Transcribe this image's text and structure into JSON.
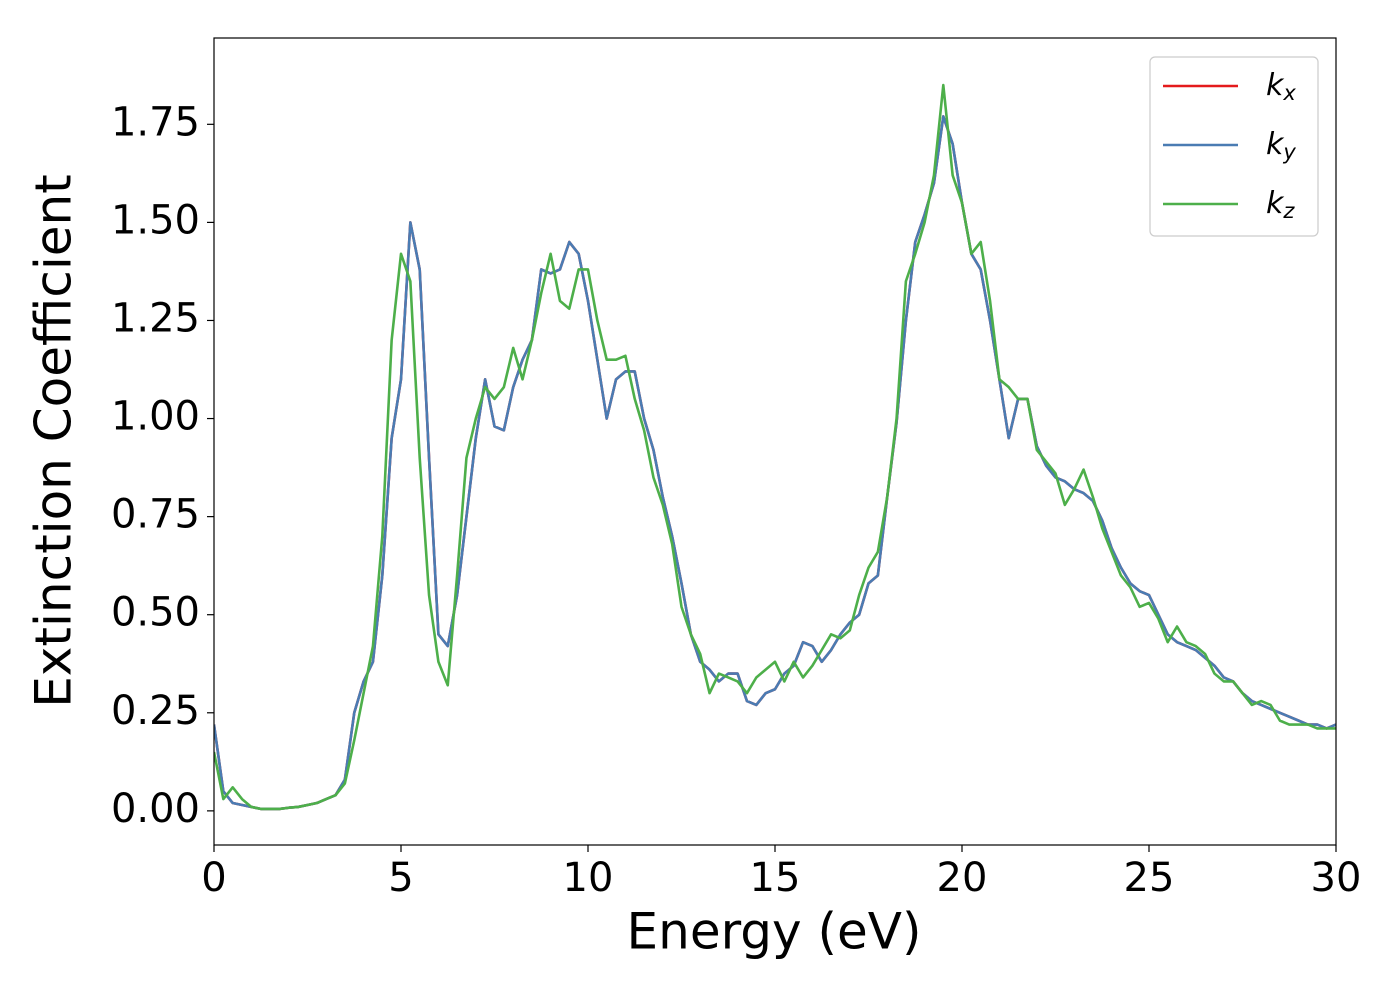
{
  "chart_data": {
    "type": "line",
    "x_label": "Energy (eV)",
    "y_label": "Extinction Coefficient",
    "xlim": [
      0,
      30
    ],
    "ylim": [
      -0.087,
      1.97
    ],
    "xticks": [
      0,
      5,
      10,
      15,
      20,
      25,
      30
    ],
    "yticks": [
      {
        "value": 0,
        "label": "0.00"
      },
      {
        "value": 0.25,
        "label": "0.25"
      },
      {
        "value": 0.5,
        "label": "0.50"
      },
      {
        "value": 0.75,
        "label": "0.75"
      },
      {
        "value": 1,
        "label": "1.00"
      },
      {
        "value": 1.25,
        "label": "1.25"
      },
      {
        "value": 1.5,
        "label": "1.50"
      },
      {
        "value": 1.75,
        "label": "1.75"
      }
    ],
    "grid": false,
    "legend": "upper right",
    "x": [
      0,
      0.25,
      0.5,
      0.75,
      1,
      1.25,
      1.5,
      1.75,
      2,
      2.25,
      2.5,
      2.75,
      3,
      3.25,
      3.5,
      3.75,
      4,
      4.25,
      4.5,
      4.75,
      5,
      5.25,
      5.5,
      5.75,
      6,
      6.25,
      6.5,
      6.75,
      7,
      7.25,
      7.5,
      7.75,
      8,
      8.25,
      8.5,
      8.75,
      9,
      9.25,
      9.5,
      9.75,
      10,
      10.25,
      10.5,
      10.75,
      11,
      11.25,
      11.5,
      11.75,
      12,
      12.25,
      12.5,
      12.75,
      13,
      13.25,
      13.5,
      13.75,
      14,
      14.25,
      14.5,
      14.75,
      15,
      15.25,
      15.5,
      15.75,
      16,
      16.25,
      16.5,
      16.75,
      17,
      17.25,
      17.5,
      17.75,
      18,
      18.25,
      18.5,
      18.75,
      19,
      19.25,
      19.5,
      19.75,
      20,
      20.25,
      20.5,
      20.75,
      21,
      21.25,
      21.5,
      21.75,
      22,
      22.25,
      22.5,
      22.75,
      23,
      23.25,
      23.5,
      23.75,
      24,
      24.25,
      24.5,
      24.75,
      25,
      25.25,
      25.5,
      25.75,
      26,
      26.25,
      26.5,
      26.75,
      27,
      27.25,
      27.5,
      27.75,
      28,
      28.25,
      28.5,
      28.75,
      29,
      29.25,
      29.5,
      29.75,
      30
    ],
    "series": [
      {
        "name": "kx",
        "color": "#e41a1c",
        "values": [
          0.22,
          0.05,
          0.02,
          0.015,
          0.01,
          0.005,
          0.005,
          0.005,
          0.008,
          0.01,
          0.015,
          0.02,
          0.03,
          0.04,
          0.08,
          0.25,
          0.33,
          0.38,
          0.6,
          0.95,
          1.1,
          1.5,
          1.38,
          0.9,
          0.45,
          0.42,
          0.55,
          0.75,
          0.95,
          1.1,
          0.98,
          0.97,
          1.08,
          1.15,
          1.2,
          1.38,
          1.37,
          1.38,
          1.45,
          1.42,
          1.3,
          1.15,
          1.0,
          1.1,
          1.12,
          1.12,
          1.0,
          0.92,
          0.8,
          0.7,
          0.58,
          0.45,
          0.38,
          0.36,
          0.33,
          0.35,
          0.35,
          0.28,
          0.27,
          0.3,
          0.31,
          0.35,
          0.37,
          0.43,
          0.42,
          0.38,
          0.41,
          0.45,
          0.48,
          0.5,
          0.58,
          0.6,
          0.8,
          0.99,
          1.25,
          1.45,
          1.52,
          1.6,
          1.77,
          1.7,
          1.55,
          1.42,
          1.38,
          1.25,
          1.1,
          0.95,
          1.05,
          1.05,
          0.93,
          0.88,
          0.85,
          0.84,
          0.82,
          0.81,
          0.79,
          0.74,
          0.67,
          0.62,
          0.58,
          0.56,
          0.55,
          0.5,
          0.45,
          0.43,
          0.42,
          0.41,
          0.39,
          0.37,
          0.34,
          0.33,
          0.3,
          0.28,
          0.27,
          0.26,
          0.25,
          0.24,
          0.23,
          0.22,
          0.22,
          0.21,
          0.22
        ]
      },
      {
        "name": "ky",
        "color": "#4a7cb3",
        "values": [
          0.22,
          0.05,
          0.02,
          0.015,
          0.01,
          0.005,
          0.005,
          0.005,
          0.008,
          0.01,
          0.015,
          0.02,
          0.03,
          0.04,
          0.08,
          0.25,
          0.33,
          0.38,
          0.6,
          0.95,
          1.1,
          1.5,
          1.38,
          0.9,
          0.45,
          0.42,
          0.55,
          0.75,
          0.95,
          1.1,
          0.98,
          0.97,
          1.08,
          1.15,
          1.2,
          1.38,
          1.37,
          1.38,
          1.45,
          1.42,
          1.3,
          1.15,
          1.0,
          1.1,
          1.12,
          1.12,
          1.0,
          0.92,
          0.8,
          0.7,
          0.58,
          0.45,
          0.38,
          0.36,
          0.33,
          0.35,
          0.35,
          0.28,
          0.27,
          0.3,
          0.31,
          0.35,
          0.37,
          0.43,
          0.42,
          0.38,
          0.41,
          0.45,
          0.48,
          0.5,
          0.58,
          0.6,
          0.8,
          0.99,
          1.25,
          1.45,
          1.52,
          1.6,
          1.77,
          1.7,
          1.55,
          1.42,
          1.38,
          1.25,
          1.1,
          0.95,
          1.05,
          1.05,
          0.93,
          0.88,
          0.85,
          0.84,
          0.82,
          0.81,
          0.79,
          0.74,
          0.67,
          0.62,
          0.58,
          0.56,
          0.55,
          0.5,
          0.45,
          0.43,
          0.42,
          0.41,
          0.39,
          0.37,
          0.34,
          0.33,
          0.3,
          0.28,
          0.27,
          0.26,
          0.25,
          0.24,
          0.23,
          0.22,
          0.22,
          0.21,
          0.22
        ]
      },
      {
        "name": "kz",
        "color": "#4daf4a",
        "values": [
          0.15,
          0.03,
          0.06,
          0.03,
          0.01,
          0.005,
          0.005,
          0.005,
          0.008,
          0.01,
          0.015,
          0.02,
          0.03,
          0.04,
          0.07,
          0.18,
          0.3,
          0.42,
          0.7,
          1.2,
          1.42,
          1.35,
          0.9,
          0.55,
          0.38,
          0.32,
          0.6,
          0.9,
          1.0,
          1.08,
          1.05,
          1.08,
          1.18,
          1.1,
          1.2,
          1.32,
          1.42,
          1.3,
          1.28,
          1.38,
          1.38,
          1.25,
          1.15,
          1.15,
          1.16,
          1.05,
          0.97,
          0.85,
          0.78,
          0.68,
          0.52,
          0.45,
          0.4,
          0.3,
          0.35,
          0.34,
          0.33,
          0.3,
          0.34,
          0.36,
          0.38,
          0.33,
          0.38,
          0.34,
          0.37,
          0.41,
          0.45,
          0.44,
          0.46,
          0.55,
          0.62,
          0.66,
          0.8,
          1.0,
          1.35,
          1.42,
          1.5,
          1.62,
          1.85,
          1.62,
          1.55,
          1.42,
          1.45,
          1.3,
          1.1,
          1.08,
          1.05,
          1.05,
          0.92,
          0.89,
          0.86,
          0.78,
          0.82,
          0.87,
          0.8,
          0.72,
          0.66,
          0.6,
          0.57,
          0.52,
          0.53,
          0.49,
          0.43,
          0.47,
          0.43,
          0.42,
          0.4,
          0.35,
          0.33,
          0.33,
          0.3,
          0.27,
          0.28,
          0.27,
          0.23,
          0.22,
          0.22,
          0.22,
          0.21,
          0.21,
          0.21
        ]
      }
    ]
  }
}
